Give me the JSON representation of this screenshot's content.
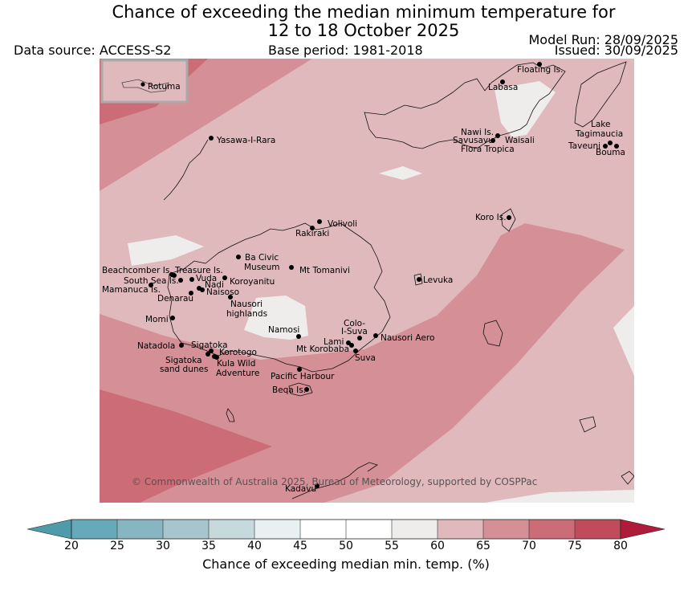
{
  "header": {
    "title_line1": "Chance of exceeding the median minimum temperature for",
    "title_line2": "12 to 18 October 2025",
    "data_source": "Data source: ACCESS-S2",
    "base_period": "Base period: 1981-2018",
    "model_run": "Model Run: 28/09/2025",
    "issued": "Issued: 30/09/2025"
  },
  "map": {
    "inset_label": "Rotuma",
    "copyright": "© Commonwealth of Australia 2025, Bureau of Meteorology, supported by COSPPac",
    "places": [
      {
        "name": "Floating Is.",
        "marker": true
      },
      {
        "name": "Labasa",
        "marker": true
      },
      {
        "name": "Nawi Is.",
        "marker": true
      },
      {
        "name": "Savusavu",
        "marker": true
      },
      {
        "name": "Flora Tropica",
        "marker": false
      },
      {
        "name": "Waisali",
        "marker": false
      },
      {
        "name": "Lake Tagimaucia",
        "marker": true
      },
      {
        "name": "Taveuni",
        "marker": true
      },
      {
        "name": "Bouma",
        "marker": true
      },
      {
        "name": "Yasawa-I-Rara",
        "marker": true
      },
      {
        "name": "Koro Is.",
        "marker": true
      },
      {
        "name": "Volivoli",
        "marker": true
      },
      {
        "name": "Rakiraki",
        "marker": true
      },
      {
        "name": "Ba Civic Museum",
        "marker": true
      },
      {
        "name": "Mt Tomanivi",
        "marker": true
      },
      {
        "name": "Levuka",
        "marker": true
      },
      {
        "name": "Beachcomber Is.",
        "marker": true
      },
      {
        "name": "Treasure Is.",
        "marker": true
      },
      {
        "name": "South Sea Is.",
        "marker": true
      },
      {
        "name": "Vuda",
        "marker": true
      },
      {
        "name": "Koroyanitu",
        "marker": true
      },
      {
        "name": "Mamanuca Is.",
        "marker": true
      },
      {
        "name": "Nadi",
        "marker": true
      },
      {
        "name": "Naisoso",
        "marker": true
      },
      {
        "name": "Denarau",
        "marker": true
      },
      {
        "name": "Nausori highlands",
        "marker": true
      },
      {
        "name": "Momi",
        "marker": true
      },
      {
        "name": "Namosi",
        "marker": true
      },
      {
        "name": "Colo-I-Suva",
        "marker": true
      },
      {
        "name": "Nausori Aero",
        "marker": true
      },
      {
        "name": "Lami",
        "marker": true
      },
      {
        "name": "Mt Korobaba",
        "marker": true
      },
      {
        "name": "Suva",
        "marker": true
      },
      {
        "name": "Natadola",
        "marker": true
      },
      {
        "name": "Sigatoka",
        "marker": true
      },
      {
        "name": "Korotogo",
        "marker": true
      },
      {
        "name": "Sigatoka sand dunes",
        "marker": true
      },
      {
        "name": "Kula Wild Adventure",
        "marker": true
      },
      {
        "name": "Pacific Harbour",
        "marker": true
      },
      {
        "name": "Beqa Is.",
        "marker": true
      },
      {
        "name": "Kadavu",
        "marker": true
      }
    ],
    "shading": {
      "background_band": "60-65",
      "colors": {
        "band_55_60": "#eeedec",
        "band_60_65": "#e0b9bd",
        "band_65_70": "#d58f96",
        "band_70_75": "#cb6c76"
      }
    }
  },
  "colorbar": {
    "label": "Chance of exceeding median min. temp. (%)",
    "ticks": [
      "20",
      "25",
      "30",
      "35",
      "40",
      "45",
      "50",
      "55",
      "60",
      "65",
      "70",
      "75",
      "80"
    ],
    "colors": [
      "#66a9b8",
      "#87b5c1",
      "#a6c5cc",
      "#c6d9dd",
      "#e9f0f2",
      "#ffffff",
      "#ffffff",
      "#eeedec",
      "#e0b9bd",
      "#d58f96",
      "#cb6c76",
      "#c04b5b"
    ],
    "under_color": "#4f9aab",
    "over_color": "#ae1c3a"
  }
}
